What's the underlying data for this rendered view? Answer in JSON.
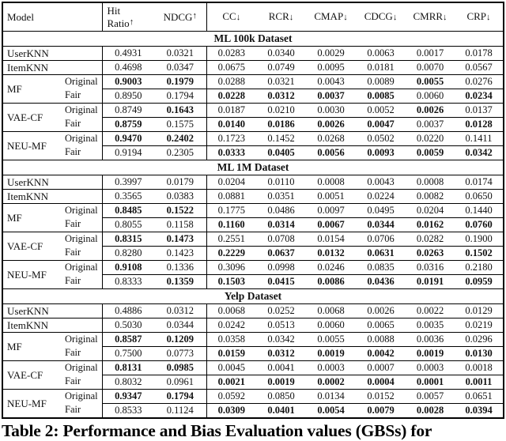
{
  "page": {
    "background": "#ffffff",
    "text_color": "#111111",
    "border_color": "#000000"
  },
  "caption": "Table 2: Performance and Bias Evaluation values (GBSs) for",
  "table": {
    "header": {
      "model_label": "Model",
      "metrics": [
        {
          "label": "Hit Ratio",
          "arrow": "↑",
          "wrap": true
        },
        {
          "label": "NDCG",
          "arrow": "↑"
        },
        {
          "label": "CC",
          "arrow": "↓"
        },
        {
          "label": "RCR",
          "arrow": "↓"
        },
        {
          "label": "CMAP",
          "arrow": "↓"
        },
        {
          "label": "CDCG",
          "arrow": "↓"
        },
        {
          "label": "CMRR",
          "arrow": "↓"
        },
        {
          "label": "CRP",
          "arrow": "↓"
        }
      ]
    },
    "sections": [
      {
        "title": "ML 100k Dataset",
        "groups": [
          {
            "model": "UserKNN",
            "rows": [
              {
                "variant": null,
                "values": [
                  "0.4931",
                  "0.0321",
                  "0.0283",
                  "0.0340",
                  "0.0029",
                  "0.0063",
                  "0.0017",
                  "0.0178"
                ],
                "bold": [
                  0,
                  0,
                  0,
                  0,
                  0,
                  0,
                  0,
                  0
                ]
              }
            ]
          },
          {
            "model": "ItemKNN",
            "rows": [
              {
                "variant": null,
                "values": [
                  "0.4698",
                  "0.0347",
                  "0.0675",
                  "0.0749",
                  "0.0095",
                  "0.0181",
                  "0.0070",
                  "0.0567"
                ],
                "bold": [
                  0,
                  0,
                  0,
                  0,
                  0,
                  0,
                  0,
                  0
                ]
              }
            ]
          },
          {
            "model": "MF",
            "rows": [
              {
                "variant": "Original",
                "values": [
                  "0.9003",
                  "0.1979",
                  "0.0288",
                  "0.0321",
                  "0.0043",
                  "0.0089",
                  "0.0055",
                  "0.0276"
                ],
                "bold": [
                  1,
                  1,
                  0,
                  0,
                  0,
                  0,
                  1,
                  0
                ]
              },
              {
                "variant": "Fair",
                "values": [
                  "0.8950",
                  "0.1794",
                  "0.0228",
                  "0.0312",
                  "0.0037",
                  "0.0085",
                  "0.0060",
                  "0.0234"
                ],
                "bold": [
                  0,
                  0,
                  1,
                  1,
                  1,
                  1,
                  0,
                  1
                ]
              }
            ]
          },
          {
            "model": "VAE-CF",
            "rows": [
              {
                "variant": "Original",
                "values": [
                  "0.8749",
                  "0.1643",
                  "0.0187",
                  "0.0210",
                  "0.0030",
                  "0.0052",
                  "0.0026",
                  "0.0137"
                ],
                "bold": [
                  0,
                  1,
                  0,
                  0,
                  0,
                  0,
                  1,
                  0
                ]
              },
              {
                "variant": "Fair",
                "values": [
                  "0.8759",
                  "0.1575",
                  "0.0140",
                  "0.0186",
                  "0.0026",
                  "0.0047",
                  "0.0037",
                  "0.0128"
                ],
                "bold": [
                  1,
                  0,
                  1,
                  1,
                  1,
                  1,
                  0,
                  1
                ]
              }
            ]
          },
          {
            "model": "NEU-MF",
            "rows": [
              {
                "variant": "Original",
                "values": [
                  "0.9470",
                  "0.2402",
                  "0.1723",
                  "0.1452",
                  "0.0268",
                  "0.0502",
                  "0.0220",
                  "0.1411"
                ],
                "bold": [
                  1,
                  1,
                  0,
                  0,
                  0,
                  0,
                  0,
                  0
                ]
              },
              {
                "variant": "Fair",
                "values": [
                  "0.9194",
                  "0.2305",
                  "0.0333",
                  "0.0405",
                  "0.0056",
                  "0.0093",
                  "0.0059",
                  "0.0342"
                ],
                "bold": [
                  0,
                  0,
                  1,
                  1,
                  1,
                  1,
                  1,
                  1
                ]
              }
            ]
          }
        ]
      },
      {
        "title": "ML 1M Dataset",
        "groups": [
          {
            "model": "UserKNN",
            "rows": [
              {
                "variant": null,
                "values": [
                  "0.3997",
                  "0.0179",
                  "0.0204",
                  "0.0110",
                  "0.0008",
                  "0.0043",
                  "0.0008",
                  "0.0174"
                ],
                "bold": [
                  0,
                  0,
                  0,
                  0,
                  0,
                  0,
                  0,
                  0
                ]
              }
            ]
          },
          {
            "model": "ItemKNN",
            "rows": [
              {
                "variant": null,
                "values": [
                  "0.3565",
                  "0.0383",
                  "0.0881",
                  "0.0351",
                  "0.0051",
                  "0.0224",
                  "0.0082",
                  "0.0650"
                ],
                "bold": [
                  0,
                  0,
                  0,
                  0,
                  0,
                  0,
                  0,
                  0
                ]
              }
            ]
          },
          {
            "model": "MF",
            "rows": [
              {
                "variant": "Original",
                "values": [
                  "0.8485",
                  "0.1522",
                  "0.1775",
                  "0.0486",
                  "0.0097",
                  "0.0495",
                  "0.0204",
                  "0.1440"
                ],
                "bold": [
                  1,
                  1,
                  0,
                  0,
                  0,
                  0,
                  0,
                  0
                ]
              },
              {
                "variant": "Fair",
                "values": [
                  "0.8055",
                  "0.1158",
                  "0.1160",
                  "0.0314",
                  "0.0067",
                  "0.0344",
                  "0.0162",
                  "0.0760"
                ],
                "bold": [
                  0,
                  0,
                  1,
                  1,
                  1,
                  1,
                  1,
                  1
                ]
              }
            ]
          },
          {
            "model": "VAE-CF",
            "rows": [
              {
                "variant": "Original",
                "values": [
                  "0.8315",
                  "0.1473",
                  "0.2551",
                  "0.0708",
                  "0.0154",
                  "0.0706",
                  "0.0282",
                  "0.1900"
                ],
                "bold": [
                  1,
                  1,
                  0,
                  0,
                  0,
                  0,
                  0,
                  0
                ]
              },
              {
                "variant": "Fair",
                "values": [
                  "0.8280",
                  "0.1423",
                  "0.2229",
                  "0.0637",
                  "0.0132",
                  "0.0631",
                  "0.0263",
                  "0.1502"
                ],
                "bold": [
                  0,
                  0,
                  1,
                  1,
                  1,
                  1,
                  1,
                  1
                ]
              }
            ]
          },
          {
            "model": "NEU-MF",
            "rows": [
              {
                "variant": "Original",
                "values": [
                  "0.9108",
                  "0.1336",
                  "0.3096",
                  "0.0998",
                  "0.0246",
                  "0.0835",
                  "0.0316",
                  "0.2180"
                ],
                "bold": [
                  1,
                  0,
                  0,
                  0,
                  0,
                  0,
                  0,
                  0
                ]
              },
              {
                "variant": "Fair",
                "values": [
                  "0.8333",
                  "0.1359",
                  "0.1503",
                  "0.0415",
                  "0.0086",
                  "0.0436",
                  "0.0191",
                  "0.0959"
                ],
                "bold": [
                  0,
                  1,
                  1,
                  1,
                  1,
                  1,
                  1,
                  1
                ]
              }
            ]
          }
        ]
      },
      {
        "title": "Yelp Dataset",
        "groups": [
          {
            "model": "UserKNN",
            "rows": [
              {
                "variant": null,
                "values": [
                  "0.4886",
                  "0.0312",
                  "0.0068",
                  "0.0252",
                  "0.0068",
                  "0.0026",
                  "0.0022",
                  "0.0129"
                ],
                "bold": [
                  0,
                  0,
                  0,
                  0,
                  0,
                  0,
                  0,
                  0
                ]
              }
            ]
          },
          {
            "model": "ItemKNN",
            "rows": [
              {
                "variant": null,
                "values": [
                  "0.5030",
                  "0.0344",
                  "0.0242",
                  "0.0513",
                  "0.0060",
                  "0.0065",
                  "0.0035",
                  "0.0219"
                ],
                "bold": [
                  0,
                  0,
                  0,
                  0,
                  0,
                  0,
                  0,
                  0
                ]
              }
            ]
          },
          {
            "model": "MF",
            "rows": [
              {
                "variant": "Original",
                "values": [
                  "0.8587",
                  "0.1209",
                  "0.0358",
                  "0.0342",
                  "0.0055",
                  "0.0088",
                  "0.0036",
                  "0.0296"
                ],
                "bold": [
                  1,
                  1,
                  0,
                  0,
                  0,
                  0,
                  0,
                  0
                ]
              },
              {
                "variant": "Fair",
                "values": [
                  "0.7500",
                  "0.0773",
                  "0.0159",
                  "0.0312",
                  "0.0019",
                  "0.0042",
                  "0.0019",
                  "0.0130"
                ],
                "bold": [
                  0,
                  0,
                  1,
                  1,
                  1,
                  1,
                  1,
                  1
                ]
              }
            ]
          },
          {
            "model": "VAE-CF",
            "rows": [
              {
                "variant": "Original",
                "values": [
                  "0.8131",
                  "0.0985",
                  "0.0045",
                  "0.0041",
                  "0.0003",
                  "0.0007",
                  "0.0003",
                  "0.0018"
                ],
                "bold": [
                  1,
                  1,
                  0,
                  0,
                  0,
                  0,
                  0,
                  0
                ]
              },
              {
                "variant": "Fair",
                "values": [
                  "0.8032",
                  "0.0961",
                  "0.0021",
                  "0.0019",
                  "0.0002",
                  "0.0004",
                  "0.0001",
                  "0.0011"
                ],
                "bold": [
                  0,
                  0,
                  1,
                  1,
                  1,
                  1,
                  1,
                  1
                ]
              }
            ]
          },
          {
            "model": "NEU-MF",
            "rows": [
              {
                "variant": "Original",
                "values": [
                  "0.9347",
                  "0.1794",
                  "0.0592",
                  "0.0850",
                  "0.0134",
                  "0.0152",
                  "0.0057",
                  "0.0651"
                ],
                "bold": [
                  1,
                  1,
                  0,
                  0,
                  0,
                  0,
                  0,
                  0
                ]
              },
              {
                "variant": "Fair",
                "values": [
                  "0.8533",
                  "0.1124",
                  "0.0309",
                  "0.0401",
                  "0.0054",
                  "0.0079",
                  "0.0028",
                  "0.0394"
                ],
                "bold": [
                  0,
                  0,
                  1,
                  1,
                  1,
                  1,
                  1,
                  1
                ]
              }
            ]
          }
        ]
      }
    ]
  }
}
